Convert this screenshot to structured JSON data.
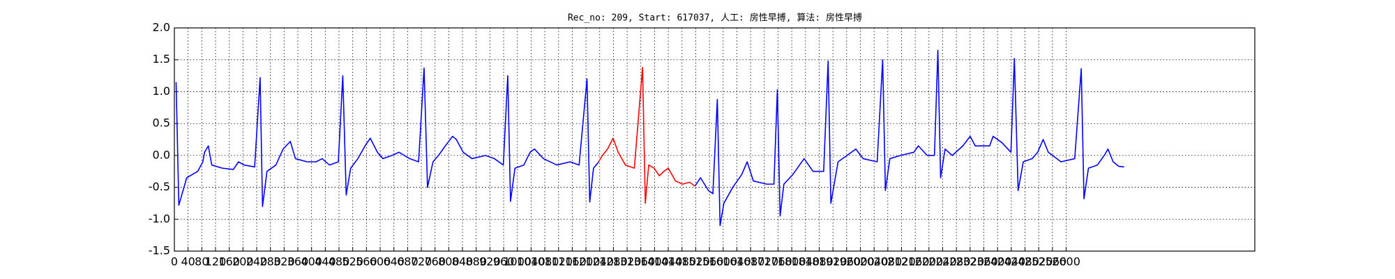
{
  "chart_data": {
    "type": "line",
    "title": "Rec_no: 209, Start: 617037, 人工: 房性早搏, 算法: 房性早搏",
    "x": [
      5,
      13,
      36,
      68,
      83,
      88,
      99,
      109,
      140,
      172,
      187,
      203,
      234,
      250,
      257,
      270,
      296,
      317,
      338,
      353,
      387,
      413,
      431,
      452,
      478,
      491,
      501,
      514,
      535,
      556,
      571,
      592,
      608,
      634,
      655,
      686,
      712,
      728,
      738,
      754,
      770,
      790,
      811,
      822,
      842,
      868,
      907,
      933,
      959,
      972,
      980,
      993,
      1019,
      1037,
      1050,
      1076,
      1115,
      1154,
      1180,
      1203,
      1211,
      1222,
      1237,
      1248,
      1263,
      1279,
      1294,
      1315,
      1341,
      1365,
      1373,
      1383,
      1399,
      1414,
      1427,
      1440,
      1461,
      1482,
      1502,
      1518,
      1534,
      1557,
      1570,
      1583,
      1591,
      1602,
      1628,
      1654,
      1670,
      1688,
      1727,
      1748,
      1758,
      1766,
      1777,
      1803,
      1836,
      1862,
      1893,
      1906,
      1914,
      1935,
      1961,
      1987,
      2008,
      2049,
      2065,
      2073,
      2086,
      2117,
      2156,
      2169,
      2195,
      2216,
      2226,
      2234,
      2247,
      2268,
      2299,
      2320,
      2335,
      2377,
      2387,
      2413,
      2439,
      2449,
      2460,
      2475,
      2501,
      2517,
      2533,
      2548,
      2585,
      2625,
      2644,
      2652,
      2665,
      2691,
      2711,
      2722,
      2737,
      2753,
      2769
    ],
    "series": [
      {
        "color": "#0000ff",
        "values": [
          1.15,
          -0.78,
          -0.35,
          -0.25,
          -0.1,
          0.05,
          0.15,
          -0.15,
          -0.2,
          -0.22,
          -0.1,
          -0.15,
          -0.18,
          1.22,
          -0.8,
          -0.25,
          -0.15,
          0.1,
          0.22,
          -0.05,
          -0.1,
          -0.1,
          -0.05,
          -0.15,
          -0.1,
          1.25,
          -0.62,
          -0.2,
          -0.05,
          0.15,
          0.27,
          0.05,
          -0.05,
          0.0,
          0.05,
          -0.05,
          -0.1,
          1.37,
          -0.5,
          -0.1,
          0.0,
          0.15,
          0.3,
          0.25,
          0.05,
          -0.05,
          0.0,
          -0.05,
          -0.15,
          1.25,
          -0.72,
          -0.2,
          -0.15,
          0.05,
          0.1,
          -0.05,
          -0.15,
          -0.1,
          -0.15,
          1.2,
          -0.73,
          -0.2,
          -0.1,
          null,
          null,
          null,
          null,
          null,
          null,
          null,
          null,
          null,
          null,
          null,
          null,
          null,
          null,
          null,
          null,
          -0.48,
          -0.35,
          -0.55,
          -0.6,
          0.88,
          -1.1,
          -0.75,
          -0.5,
          -0.3,
          -0.1,
          -0.4,
          -0.45,
          -0.45,
          1.03,
          -0.95,
          -0.45,
          -0.3,
          -0.05,
          -0.25,
          -0.25,
          1.48,
          -0.75,
          -0.1,
          0.0,
          0.1,
          -0.05,
          -0.1,
          1.5,
          -0.55,
          -0.05,
          0.0,
          0.05,
          0.15,
          0.0,
          0.0,
          1.65,
          -0.35,
          0.1,
          0.0,
          0.15,
          0.3,
          0.15,
          0.15,
          0.3,
          0.2,
          0.05,
          1.52,
          -0.55,
          -0.1,
          -0.05,
          0.05,
          0.25,
          0.05,
          -0.1,
          -0.05,
          1.36,
          -0.68,
          -0.2,
          -0.15,
          0.0,
          0.1,
          -0.1,
          -0.17,
          -0.18
        ]
      },
      {
        "color": "#ff0000",
        "values": [
          null,
          null,
          null,
          null,
          null,
          null,
          null,
          null,
          null,
          null,
          null,
          null,
          null,
          null,
          null,
          null,
          null,
          null,
          null,
          null,
          null,
          null,
          null,
          null,
          null,
          null,
          null,
          null,
          null,
          null,
          null,
          null,
          null,
          null,
          null,
          null,
          null,
          null,
          null,
          null,
          null,
          null,
          null,
          null,
          null,
          null,
          null,
          null,
          null,
          null,
          null,
          null,
          null,
          null,
          null,
          null,
          null,
          null,
          null,
          null,
          null,
          null,
          -0.1,
          0.0,
          0.1,
          0.27,
          0.05,
          -0.15,
          -0.2,
          1.38,
          -0.75,
          -0.15,
          -0.2,
          -0.32,
          -0.25,
          -0.2,
          -0.4,
          -0.45,
          -0.42,
          -0.48,
          null,
          null,
          null,
          null,
          null,
          null,
          null,
          null,
          null,
          null,
          null,
          null,
          null,
          null,
          null,
          null,
          null,
          null,
          null,
          null,
          null,
          null,
          null,
          null,
          null,
          null,
          null,
          null,
          null,
          null,
          null,
          null,
          null,
          null,
          null,
          null,
          null,
          null,
          null,
          null,
          null,
          null,
          null,
          null,
          null,
          null,
          null,
          null,
          null,
          null,
          null,
          null,
          null,
          null,
          null,
          null,
          null,
          null,
          null,
          null,
          null,
          null,
          null
        ]
      }
    ],
    "xlim": [
      0,
      3150
    ],
    "xticks": [
      0,
      40,
      80,
      120,
      160,
      200,
      240,
      280,
      320,
      360,
      400,
      440,
      480,
      520,
      560,
      600,
      640,
      680,
      720,
      760,
      800,
      840,
      880,
      920,
      960,
      1000,
      1040,
      1080,
      1120,
      1160,
      1200,
      1240,
      1280,
      1320,
      1360,
      1400,
      1440,
      1480,
      1520,
      1560,
      1600,
      1640,
      1680,
      1720,
      1760,
      1800,
      1840,
      1880,
      1920,
      1960,
      2000,
      2040,
      2080,
      2120,
      2160,
      2200,
      2240,
      2280,
      2320,
      2360,
      2400,
      2440,
      2480,
      2520,
      2560,
      2600
    ],
    "ylim": [
      -1.5,
      2.0
    ],
    "yticks": [
      {
        "value": -1.5,
        "label": "-1.5"
      },
      {
        "value": -1.0,
        "label": "-1.0"
      },
      {
        "value": -0.5,
        "label": "-0.5"
      },
      {
        "value": 0,
        "label": "0.0"
      },
      {
        "value": 0.5,
        "label": "0.5"
      },
      {
        "value": 1.0,
        "label": "1.0"
      },
      {
        "value": 1.5,
        "label": "1.5"
      },
      {
        "value": 2.0,
        "label": "2.0"
      }
    ],
    "grid": true
  }
}
